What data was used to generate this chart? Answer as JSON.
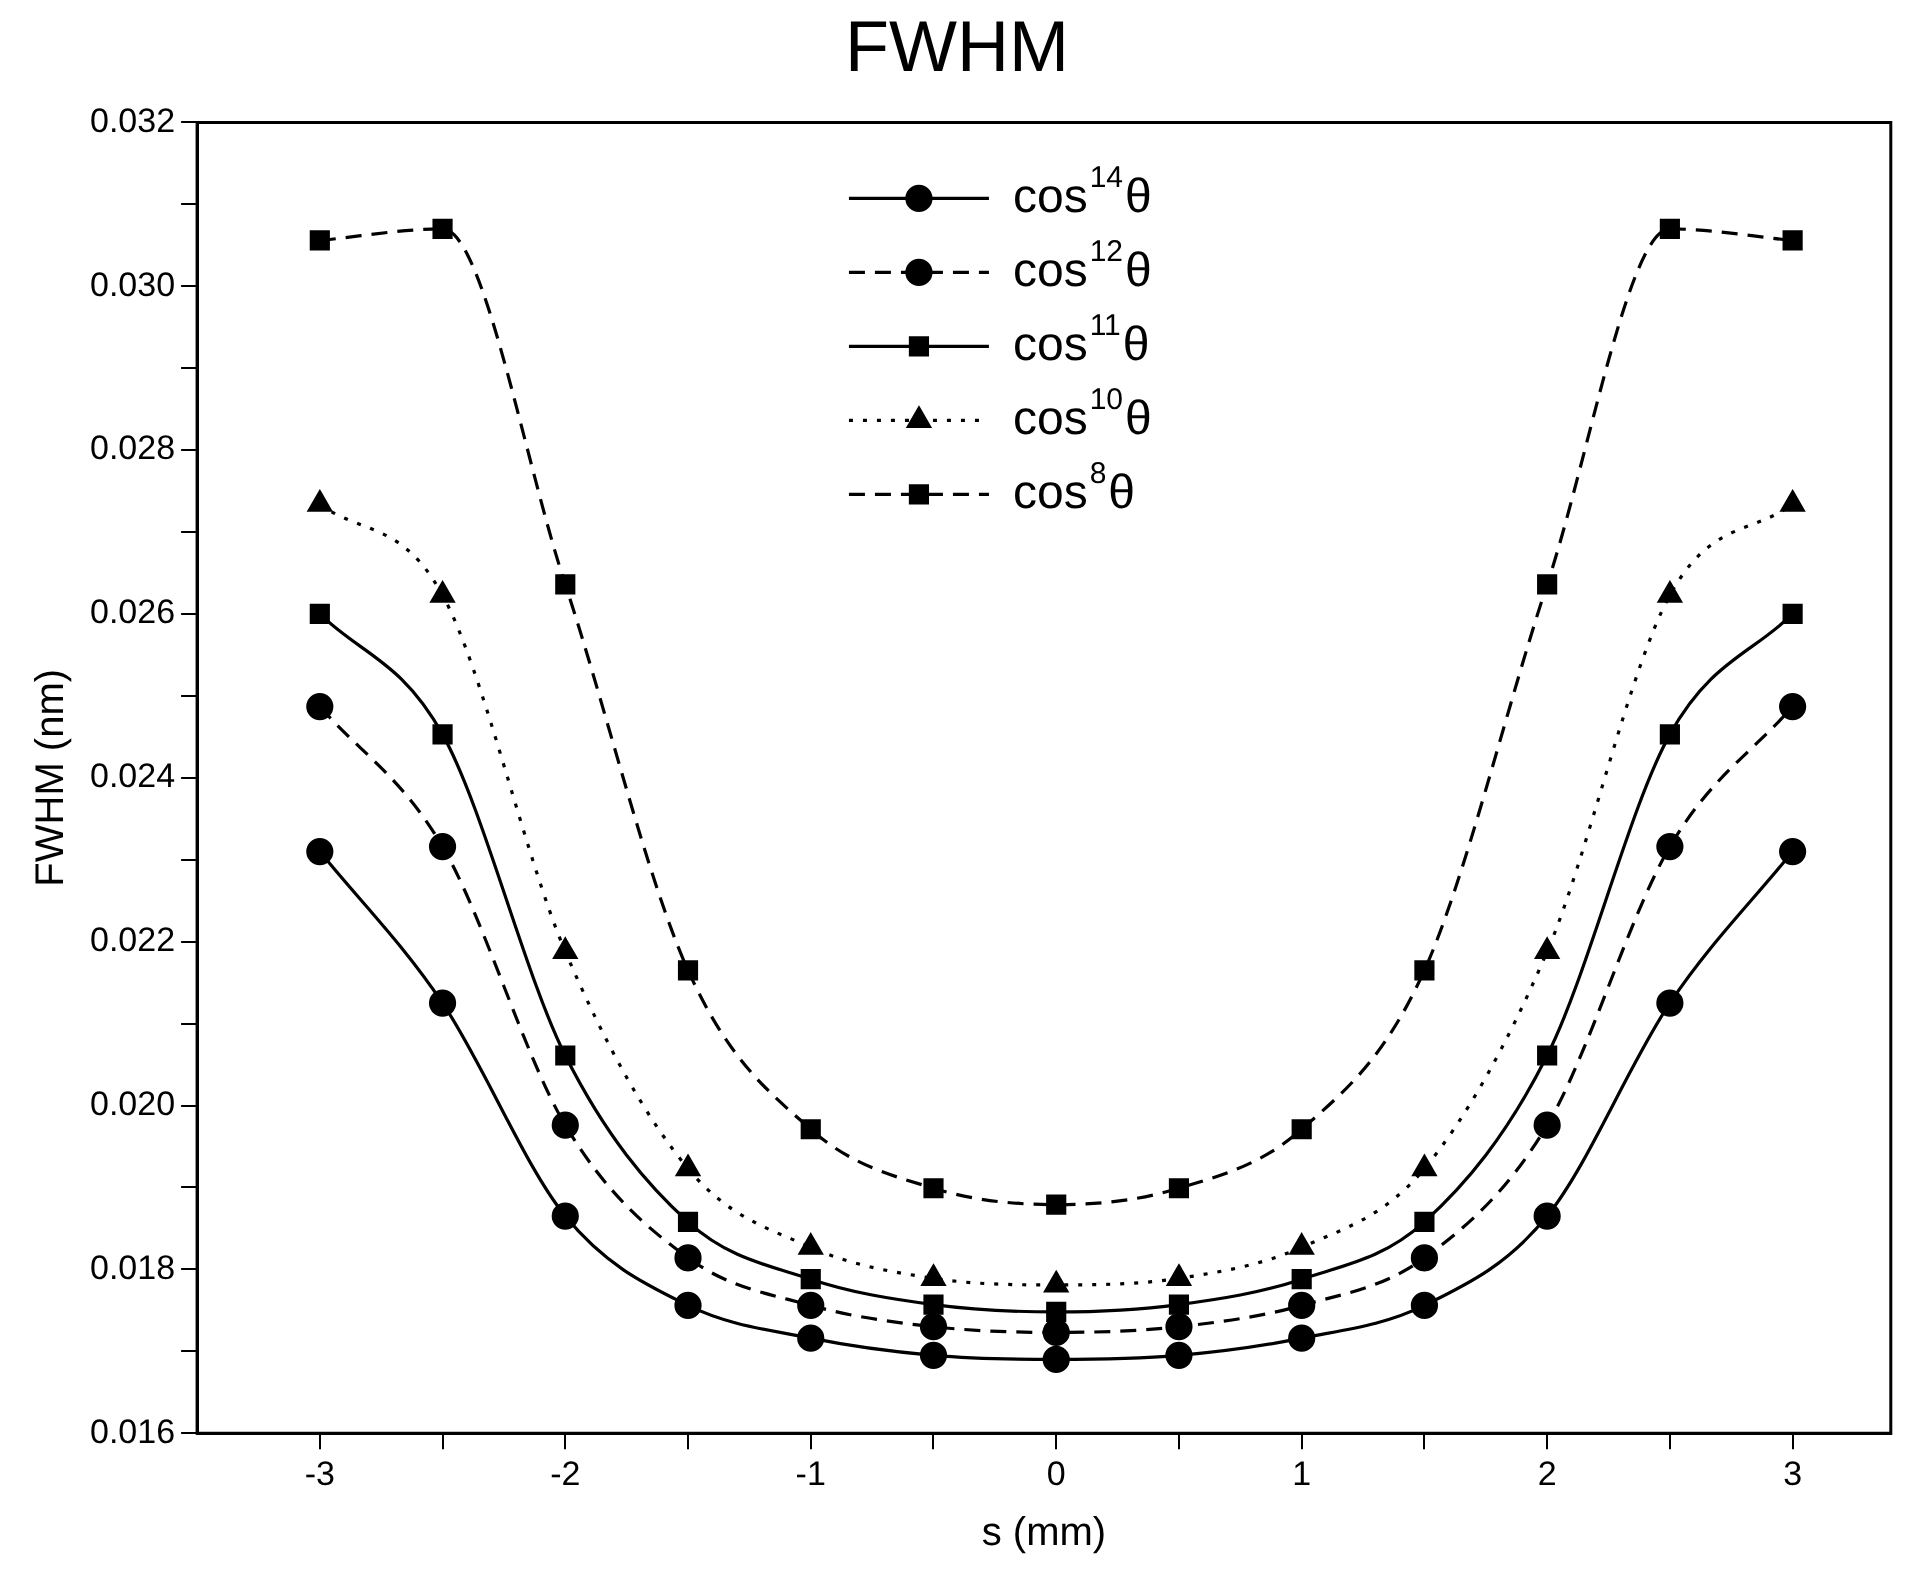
{
  "chart_data": {
    "type": "line",
    "title": "FWHM",
    "xlabel": "s (mm)",
    "ylabel": "FWHM (nm)",
    "legend": "top",
    "x": [
      -3,
      -2.5,
      -2,
      -1.5,
      -1,
      -0.5,
      0,
      0.5,
      1,
      1.5,
      2,
      2.5,
      3
    ],
    "xlim": [
      -3.5,
      3.4
    ],
    "xticks": [
      -3,
      {
        "value": -2.5,
        "label": null
      },
      -2,
      {
        "value": -1.5,
        "label": null
      },
      -1,
      {
        "value": -0.5,
        "label": null
      },
      0,
      {
        "value": 0.5,
        "label": null
      },
      1,
      {
        "value": 1.5,
        "label": null
      },
      2,
      {
        "value": 2.5,
        "label": null
      },
      3
    ],
    "ylim": [
      0.016,
      0.032
    ],
    "yticks": [
      0.016,
      {
        "value": 0.017,
        "label": null
      },
      0.018,
      {
        "value": 0.019,
        "label": null
      },
      {
        "value": 0.02,
        "label": "0.020"
      },
      {
        "value": 0.021,
        "label": null
      },
      0.022,
      {
        "value": 0.023,
        "label": null
      },
      0.024,
      {
        "value": 0.025,
        "label": null
      },
      0.026,
      {
        "value": 0.027,
        "label": null
      },
      0.028,
      {
        "value": 0.029,
        "label": null
      },
      {
        "value": 0.03,
        "label": "0.030"
      },
      {
        "value": 0.031,
        "label": null
      },
      0.032
    ],
    "series": [
      {
        "name": "cos$^{14}$θ",
        "color": "#000000",
        "marker": "circle",
        "line_style": "solid",
        "values": [
          0.0231,
          0.02125,
          0.01865,
          0.01756,
          0.01716,
          0.01695,
          0.0169,
          0.01695,
          0.01716,
          0.01756,
          0.01865,
          0.02125,
          0.0231
        ]
      },
      {
        "name": "cos$^{12}$θ",
        "color": "#000000",
        "marker": "circle",
        "line_style": "dashed",
        "values": [
          0.02487,
          0.02316,
          0.01976,
          0.01814,
          0.01756,
          0.0173,
          0.01723,
          0.0173,
          0.01756,
          0.01814,
          0.01976,
          0.02316,
          0.02487
        ]
      },
      {
        "name": "cos$^{11}$θ",
        "color": "#000000",
        "marker": "square",
        "line_style": "solid",
        "values": [
          0.026,
          0.02453,
          0.02061,
          0.01858,
          0.01788,
          0.01757,
          0.01748,
          0.01757,
          0.01788,
          0.01858,
          0.02061,
          0.02453,
          0.026
        ]
      },
      {
        "name": "cos$^{10}$θ",
        "color": "#000000",
        "marker": "triangle",
        "line_style": "dotted",
        "values": [
          0.02734,
          0.02623,
          0.02188,
          0.01923,
          0.01827,
          0.01789,
          0.01781,
          0.01789,
          0.01827,
          0.01923,
          0.02188,
          0.02623,
          0.02734
        ]
      },
      {
        "name": "cos$^{8}$θ",
        "color": "#000000",
        "marker": "square",
        "line_style": "dashed",
        "values": [
          0.03056,
          0.0307,
          0.02636,
          0.02165,
          0.01971,
          0.01899,
          0.01879,
          0.01899,
          0.01971,
          0.02165,
          0.02636,
          0.0307,
          0.03056
        ]
      }
    ]
  }
}
